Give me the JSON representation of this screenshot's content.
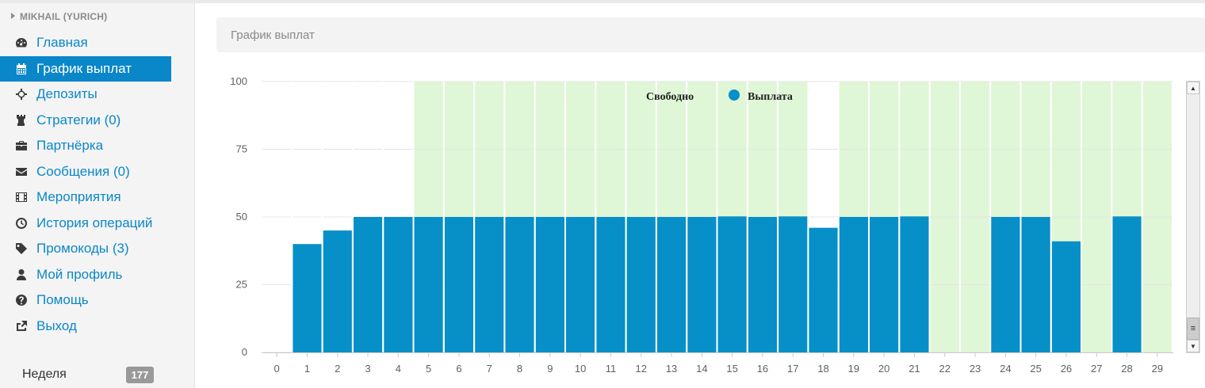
{
  "sidebar": {
    "user": "MIKHAIL (YURICH)",
    "items": [
      {
        "label": "Главная",
        "icon": "dashboard-icon"
      },
      {
        "label": "График выплат",
        "icon": "calendar-icon",
        "active": true
      },
      {
        "label": "Депозиты",
        "icon": "crosshairs-icon"
      },
      {
        "label": "Стратегии (0)",
        "icon": "chess-rook-icon"
      },
      {
        "label": "Партнёрка",
        "icon": "briefcase-icon"
      },
      {
        "label": "Сообщения (0)",
        "icon": "envelope-icon"
      },
      {
        "label": "Мероприятия",
        "icon": "film-icon"
      },
      {
        "label": "История операций",
        "icon": "clock-icon"
      },
      {
        "label": "Промокоды (3)",
        "icon": "tag-icon"
      },
      {
        "label": "Мой профиль",
        "icon": "user-icon"
      },
      {
        "label": "Помощь",
        "icon": "question-circle-icon"
      },
      {
        "label": "Выход",
        "icon": "share-square-icon"
      }
    ],
    "week_label": "Неделя",
    "week_count": "177"
  },
  "header": {
    "title": "График выплат"
  },
  "colors": {
    "accent": "#0a87c9",
    "bar": "#078fc8",
    "free": "#dff7d6"
  },
  "chart_data": {
    "type": "bar",
    "categories": [
      "0",
      "1",
      "2",
      "3",
      "4",
      "5",
      "6",
      "7",
      "8",
      "9",
      "10",
      "11",
      "12",
      "13",
      "14",
      "15",
      "16",
      "17",
      "18",
      "19",
      "20",
      "21",
      "22",
      "23",
      "24",
      "25",
      "26",
      "27",
      "28",
      "29"
    ],
    "ylim": [
      0,
      100
    ],
    "yticks": [
      "0",
      "25",
      "50",
      "75",
      "100"
    ],
    "grid": true,
    "legend_position": "top-center",
    "series": [
      {
        "name": "Свободно",
        "values": [
          0,
          0,
          0,
          0,
          0,
          100,
          100,
          100,
          100,
          100,
          100,
          100,
          100,
          100,
          100,
          100,
          100,
          100,
          0,
          100,
          100,
          100,
          100,
          100,
          100,
          100,
          100,
          100,
          100,
          100
        ]
      },
      {
        "name": "Выплата",
        "values": [
          0,
          40,
          45,
          50,
          50,
          50,
          50,
          50,
          50,
          50,
          50,
          50,
          50,
          50,
          50,
          50.2,
          50,
          50.2,
          46,
          50,
          50,
          50.2,
          0,
          0,
          50,
          50,
          41,
          0,
          50.2,
          0
        ]
      }
    ]
  }
}
